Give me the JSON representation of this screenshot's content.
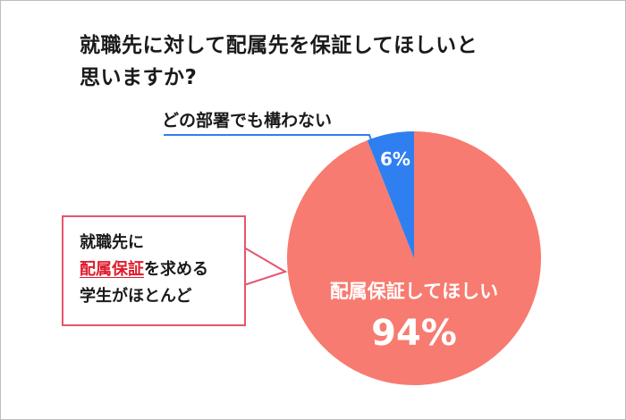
{
  "question": {
    "line1": "就職先に対して配属先を保証してほしいと",
    "line2": "思いますか?"
  },
  "callout": {
    "line1": "就職先に",
    "line2_highlight": "配属保証",
    "line2_rest": "を求める",
    "line3": "学生がほとんど"
  },
  "colors": {
    "major_slice": "#f77b70",
    "minor_slice": "#2f7ff0",
    "callout_border": "#e5556e",
    "highlight_text": "#e01b2c",
    "leader_line": "#2f7ff0"
  },
  "chart_data": {
    "type": "pie",
    "title": "",
    "slices": [
      {
        "label": "配属保証してほしい",
        "value": 94,
        "value_label": "94%",
        "color": "#f77b70"
      },
      {
        "label": "どの部署でも構わない",
        "value": 6,
        "value_label": "6%",
        "color": "#2f7ff0"
      }
    ],
    "start_angle": "12 o'clock",
    "direction": "clockwise from the large slice"
  }
}
